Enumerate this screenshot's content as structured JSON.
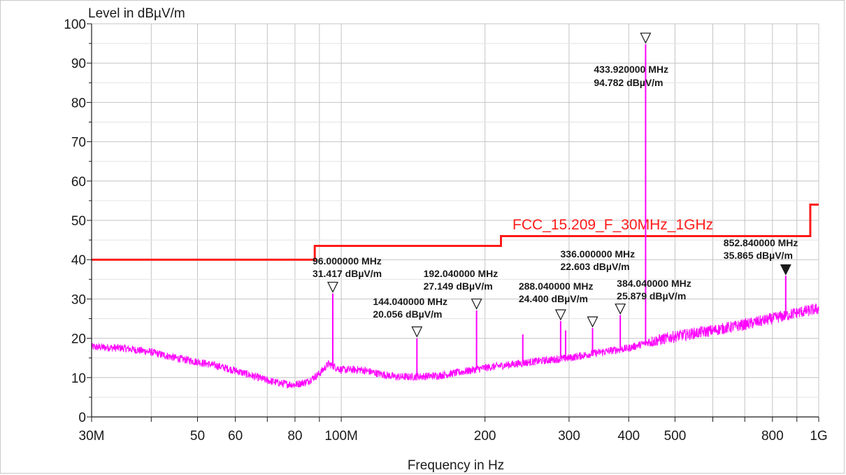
{
  "chart_data": {
    "type": "line",
    "ylabel": "Level in dBµV/m",
    "xlabel": "Frequency in Hz",
    "x_scale": "log",
    "xlim": [
      30000000,
      1000000000
    ],
    "ylim": [
      0,
      100
    ],
    "grid": true,
    "x_ticks": [
      {
        "value": 30000000,
        "label": "30M"
      },
      {
        "value": 50000000,
        "label": "50"
      },
      {
        "value": 60000000,
        "label": "60"
      },
      {
        "value": 80000000,
        "label": "80"
      },
      {
        "value": 100000000,
        "label": "100M"
      },
      {
        "value": 200000000,
        "label": "200"
      },
      {
        "value": 300000000,
        "label": "300"
      },
      {
        "value": 400000000,
        "label": "400"
      },
      {
        "value": 500000000,
        "label": "500"
      },
      {
        "value": 800000000,
        "label": "800"
      },
      {
        "value": 1000000000,
        "label": "1G"
      }
    ],
    "x_grid_values": [
      30000000,
      40000000,
      50000000,
      60000000,
      70000000,
      80000000,
      90000000,
      100000000,
      200000000,
      300000000,
      400000000,
      500000000,
      600000000,
      700000000,
      800000000,
      900000000,
      1000000000
    ],
    "y_ticks": [
      0,
      10,
      20,
      30,
      40,
      50,
      60,
      70,
      80,
      90,
      100
    ],
    "limit_line": {
      "name": "FCC_15.209_F_30MHz_1GHz",
      "color": "#ff1a1a",
      "segments": [
        {
          "from_hz": 30000000,
          "to_hz": 88000000,
          "level": 40
        },
        {
          "from_hz": 88000000,
          "to_hz": 216000000,
          "level": 43.5
        },
        {
          "from_hz": 216000000,
          "to_hz": 960000000,
          "level": 46
        },
        {
          "from_hz": 960000000,
          "to_hz": 1000000000,
          "level": 54
        }
      ]
    },
    "series": [
      {
        "color": "#ff00ff",
        "baseline": [
          {
            "x": 30000000,
            "y": 17.8
          },
          {
            "x": 35000000,
            "y": 17.5
          },
          {
            "x": 40000000,
            "y": 16.5
          },
          {
            "x": 45000000,
            "y": 15.0
          },
          {
            "x": 50000000,
            "y": 14.0
          },
          {
            "x": 55000000,
            "y": 13.0
          },
          {
            "x": 60000000,
            "y": 11.8
          },
          {
            "x": 65000000,
            "y": 10.5
          },
          {
            "x": 70000000,
            "y": 9.3
          },
          {
            "x": 75000000,
            "y": 8.5
          },
          {
            "x": 80000000,
            "y": 8.2
          },
          {
            "x": 85000000,
            "y": 9.0
          },
          {
            "x": 90000000,
            "y": 11.0
          },
          {
            "x": 94000000,
            "y": 13.5
          },
          {
            "x": 100000000,
            "y": 12.0
          },
          {
            "x": 110000000,
            "y": 12.0
          },
          {
            "x": 120000000,
            "y": 11.0
          },
          {
            "x": 130000000,
            "y": 10.2
          },
          {
            "x": 140000000,
            "y": 10.2
          },
          {
            "x": 160000000,
            "y": 10.5
          },
          {
            "x": 180000000,
            "y": 11.5
          },
          {
            "x": 200000000,
            "y": 12.5
          },
          {
            "x": 250000000,
            "y": 14.0
          },
          {
            "x": 300000000,
            "y": 15.0
          },
          {
            "x": 350000000,
            "y": 16.5
          },
          {
            "x": 400000000,
            "y": 17.5
          },
          {
            "x": 440000000,
            "y": 19.0
          },
          {
            "x": 500000000,
            "y": 20.5
          },
          {
            "x": 600000000,
            "y": 22.0
          },
          {
            "x": 700000000,
            "y": 23.5
          },
          {
            "x": 800000000,
            "y": 25.0
          },
          {
            "x": 900000000,
            "y": 26.5
          },
          {
            "x": 1000000000,
            "y": 27.5
          }
        ],
        "spikes": [
          {
            "x": 96000000,
            "y": 31.4
          },
          {
            "x": 144040000,
            "y": 20.0
          },
          {
            "x": 192040000,
            "y": 27.1
          },
          {
            "x": 240000000,
            "y": 21.0
          },
          {
            "x": 288040000,
            "y": 24.4
          },
          {
            "x": 295000000,
            "y": 22.0
          },
          {
            "x": 336000000,
            "y": 22.6
          },
          {
            "x": 384040000,
            "y": 25.9
          },
          {
            "x": 433920000,
            "y": 94.8
          },
          {
            "x": 852840000,
            "y": 35.9
          }
        ]
      }
    ],
    "markers": [
      {
        "x": 96000000,
        "y": 31.417,
        "freq_label": "96.000000 MHz",
        "level_label": "31.417 dBµV/m",
        "filled": false
      },
      {
        "x": 144040000,
        "y": 20.056,
        "freq_label": "144.040000 MHz",
        "level_label": "20.056 dBµV/m",
        "filled": false
      },
      {
        "x": 192040000,
        "y": 27.149,
        "freq_label": "192.040000 MHz",
        "level_label": "27.149 dBµV/m",
        "filled": false
      },
      {
        "x": 288040000,
        "y": 24.4,
        "freq_label": "288.040000 MHz",
        "level_label": "24.400 dBµV/m",
        "filled": false
      },
      {
        "x": 336000000,
        "y": 22.603,
        "freq_label": "336.000000 MHz",
        "level_label": "22.603 dBµV/m",
        "filled": false
      },
      {
        "x": 384040000,
        "y": 25.879,
        "freq_label": "384.040000 MHz",
        "level_label": "25.879 dBµV/m",
        "filled": false
      },
      {
        "x": 433920000,
        "y": 94.782,
        "freq_label": "433.920000 MHz",
        "level_label": "94.782 dBµV/m",
        "filled": false
      },
      {
        "x": 852840000,
        "y": 35.865,
        "freq_label": "852.840000 MHz",
        "level_label": "35.865 dBµV/m",
        "filled": true
      }
    ]
  }
}
